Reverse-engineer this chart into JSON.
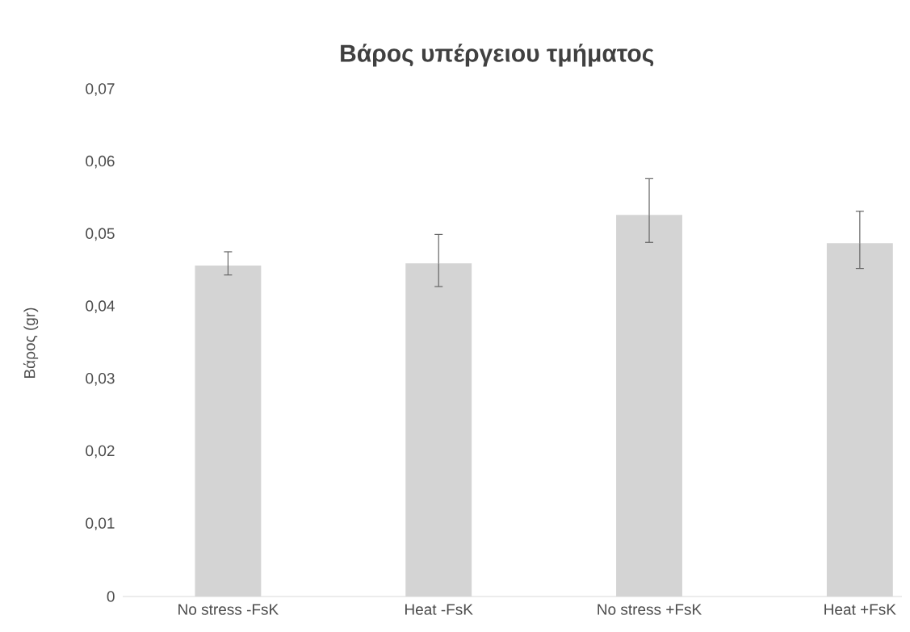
{
  "chart_data": {
    "type": "bar",
    "title": "Βάρος υπέργειου τμήματος",
    "ylabel": "Βάρος (gr)",
    "categories": [
      "No stress -FsK",
      "Heat -FsK",
      "No stress +FsK",
      "Heat +FsK"
    ],
    "values": [
      0.0457,
      0.046,
      0.0527,
      0.0488
    ],
    "errors": [
      [
        0.0444,
        0.0476
      ],
      [
        0.0428,
        0.05
      ],
      [
        0.0489,
        0.0577
      ],
      [
        0.0453,
        0.0532
      ]
    ],
    "color": "#d4d4d4",
    "ylim": [
      0,
      0.07
    ],
    "yticks": [
      0,
      {
        "value": 0.01,
        "label": "0,01"
      },
      {
        "value": 0.02,
        "label": "0,02"
      },
      {
        "value": 0.03,
        "label": "0,03"
      },
      {
        "value": 0.04,
        "label": "0,04"
      },
      {
        "value": 0.05,
        "label": "0,05"
      },
      {
        "value": 0.06,
        "label": "0,06"
      },
      {
        "value": 0.07,
        "label": "0,07"
      }
    ]
  }
}
